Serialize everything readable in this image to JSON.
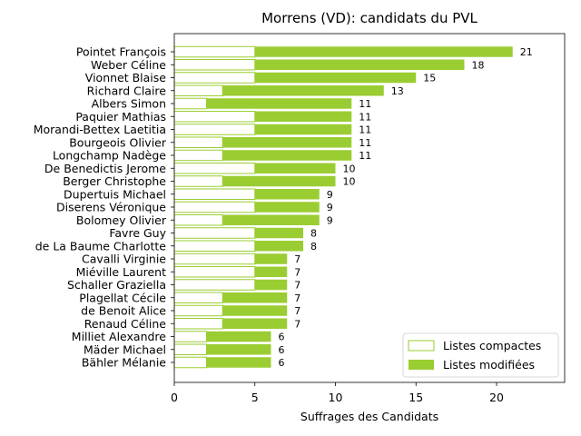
{
  "chart_data": {
    "type": "bar",
    "orientation": "horizontal",
    "stacked": true,
    "title": "Morrens (VD): candidats du PVL",
    "xlabel": "Suffrages des Candidats",
    "ylabel": "",
    "xlim": [
      0,
      24
    ],
    "xticks": [
      0,
      5,
      10,
      15,
      20
    ],
    "grid": false,
    "legend_position": "bottom-right",
    "colors": {
      "compact_edge": "#9acd32",
      "compact_fill": "#ffffff",
      "modified": "#9acd32"
    },
    "categories": [
      "Pointet François",
      "Weber Céline",
      "Vionnet Blaise",
      "Richard Claire",
      "Albers Simon",
      "Paquier Mathias",
      "Morandi-Bettex Laetitia",
      "Bourgeois Olivier",
      "Longchamp Nadège",
      "De Benedictis Jerome",
      "Berger Christophe",
      "Dupertuis Michael",
      "Diserens Véronique",
      "Bolomey Olivier",
      "Favre Guy",
      "de La Baume Charlotte",
      "Cavalli Virginie",
      "Miéville Laurent",
      "Schaller Graziella",
      "Plagellat Cécile",
      "de Benoit Alice",
      "Renaud Céline",
      "Milliet Alexandre",
      "Mäder Michael",
      "Bähler Mélanie"
    ],
    "series": [
      {
        "name": "Listes compactes",
        "values": [
          5,
          5,
          5,
          3,
          2,
          5,
          5,
          3,
          3,
          5,
          3,
          5,
          5,
          3,
          5,
          5,
          5,
          5,
          5,
          3,
          3,
          3,
          2,
          2,
          2
        ]
      },
      {
        "name": "Listes modifiées",
        "values": [
          16,
          13,
          10,
          10,
          9,
          6,
          6,
          8,
          8,
          5,
          7,
          4,
          4,
          6,
          3,
          3,
          2,
          2,
          2,
          4,
          4,
          4,
          4,
          4,
          4
        ]
      }
    ],
    "totals": [
      21,
      18,
      15,
      13,
      11,
      11,
      11,
      11,
      11,
      10,
      10,
      9,
      9,
      9,
      8,
      8,
      7,
      7,
      7,
      7,
      7,
      7,
      6,
      6,
      6
    ]
  }
}
